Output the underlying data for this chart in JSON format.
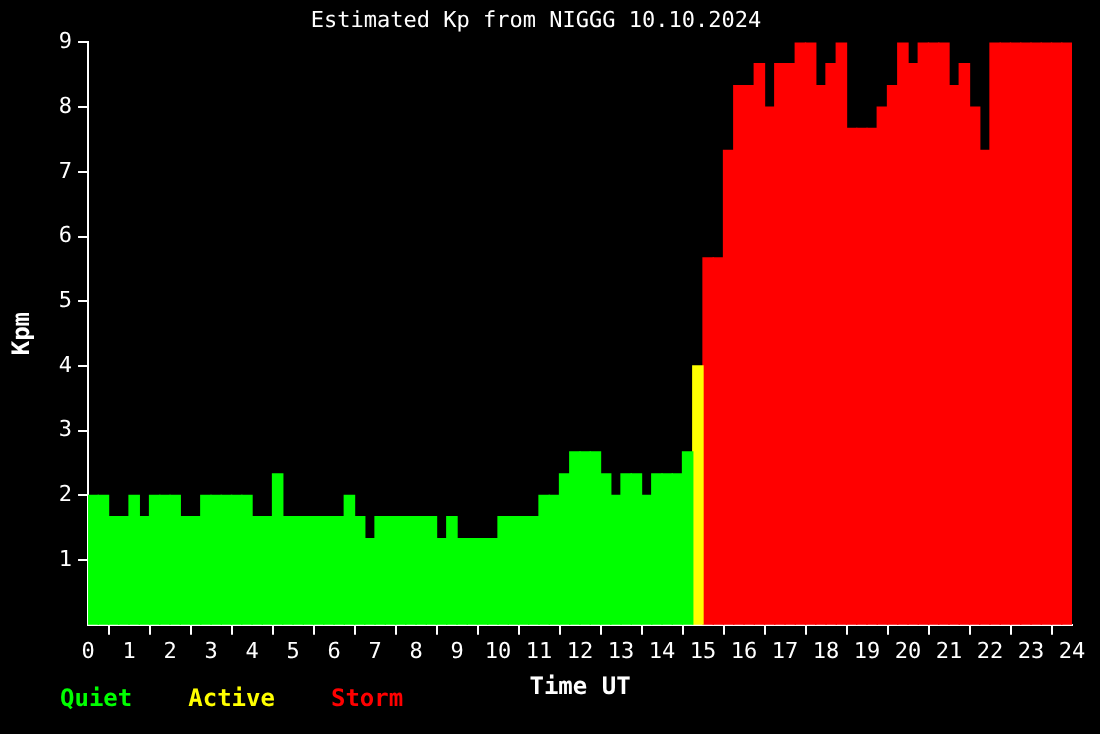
{
  "chart_data": {
    "type": "bar",
    "title": "Estimated Kp from NIGGG 10.10.2024",
    "xlabel": "Time UT",
    "ylabel": "Kpm",
    "stacked": true,
    "legend": "bottom left",
    "grid": false,
    "x": [
      0.125,
      0.375,
      0.625,
      0.875,
      1.125,
      1.375,
      1.625,
      1.875,
      2.125,
      2.375,
      2.625,
      2.875,
      3.125,
      3.375,
      3.625,
      3.875,
      4.125,
      4.375,
      4.625,
      4.875,
      5.125,
      5.375,
      5.625,
      5.875,
      6.125,
      6.375,
      6.625,
      6.875,
      7.125,
      7.375,
      7.625,
      7.875,
      8.125,
      8.375,
      8.625,
      8.875,
      9.125,
      9.375,
      9.625,
      9.875,
      10.125,
      10.375,
      10.625,
      10.875,
      11.125,
      11.375,
      11.625,
      11.875,
      12.125,
      12.375,
      12.625,
      12.875,
      13.125,
      13.375,
      13.625,
      13.875,
      14.125,
      14.375,
      14.625,
      14.875,
      15.125,
      15.375,
      15.625,
      15.875,
      16.125,
      16.375,
      16.625,
      16.875,
      17.125,
      17.375,
      17.625,
      17.875,
      18.125,
      18.375,
      18.625,
      18.875,
      19.125,
      19.375,
      19.625,
      19.875,
      20.125,
      20.375,
      20.625,
      20.875,
      21.125,
      21.375,
      21.625,
      21.875,
      22.125,
      22.375,
      22.625,
      22.875,
      23.125,
      23.375,
      23.625,
      23.875
    ],
    "xlim": [
      0,
      24
    ],
    "xticks": [
      0,
      1,
      2,
      3,
      4,
      5,
      6,
      7,
      8,
      9,
      10,
      11,
      12,
      13,
      14,
      15,
      16,
      17,
      18,
      19,
      20,
      21,
      22,
      23,
      24
    ],
    "ylim": [
      0,
      9
    ],
    "yticks": [
      1,
      2,
      3,
      4,
      5,
      6,
      7,
      8,
      9
    ],
    "series": [
      {
        "name": "Quiet",
        "color": "#00ff00",
        "values": [
          2,
          2,
          1.67,
          1.67,
          2,
          1.67,
          2,
          2,
          2,
          1.67,
          1.67,
          2,
          2,
          2,
          2,
          2,
          1.67,
          1.67,
          2.33,
          1.67,
          1.67,
          1.67,
          1.67,
          1.67,
          1.67,
          2,
          1.67,
          1.33,
          1.67,
          1.67,
          1.67,
          1.67,
          1.67,
          1.67,
          1.33,
          1.67,
          1.33,
          1.33,
          1.33,
          1.33,
          1.67,
          1.67,
          1.67,
          1.67,
          2,
          2,
          2.33,
          2.67,
          2.67,
          2.67,
          2.33,
          2,
          2.33,
          2.33,
          2,
          2.33,
          2.33,
          2.33,
          2.67,
          null,
          null,
          null,
          null,
          null,
          null,
          null,
          null,
          null,
          null,
          null,
          null,
          null,
          null,
          null,
          null,
          null,
          null,
          null,
          null,
          null,
          null,
          null,
          null,
          null,
          null,
          null,
          null,
          null,
          null,
          null,
          null,
          null,
          null,
          null,
          null,
          null
        ]
      },
      {
        "name": "Active",
        "color": "#ffff00",
        "values": [
          null,
          null,
          null,
          null,
          null,
          null,
          null,
          null,
          null,
          null,
          null,
          null,
          null,
          null,
          null,
          null,
          null,
          null,
          null,
          null,
          null,
          null,
          null,
          null,
          null,
          null,
          null,
          null,
          null,
          null,
          null,
          null,
          null,
          null,
          null,
          null,
          null,
          null,
          null,
          null,
          null,
          null,
          null,
          null,
          null,
          null,
          null,
          null,
          null,
          null,
          null,
          null,
          null,
          null,
          null,
          null,
          null,
          null,
          null,
          4,
          null,
          null,
          null,
          null,
          null,
          null,
          null,
          null,
          null,
          null,
          null,
          null,
          null,
          null,
          null,
          null,
          null,
          null,
          null,
          null,
          null,
          null,
          null,
          null,
          null,
          null,
          null,
          null,
          null,
          null,
          null,
          null,
          null,
          null,
          null,
          null
        ]
      },
      {
        "name": "Storm",
        "color": "#ff0000",
        "values": [
          null,
          null,
          null,
          null,
          null,
          null,
          null,
          null,
          null,
          null,
          null,
          null,
          null,
          null,
          null,
          null,
          null,
          null,
          null,
          null,
          null,
          null,
          null,
          null,
          null,
          null,
          null,
          null,
          null,
          null,
          null,
          null,
          null,
          null,
          null,
          null,
          null,
          null,
          null,
          null,
          null,
          null,
          null,
          null,
          null,
          null,
          null,
          null,
          null,
          null,
          null,
          null,
          null,
          null,
          null,
          null,
          null,
          null,
          null,
          null,
          5.67,
          5.67,
          7.33,
          8.33,
          8.33,
          8.67,
          8,
          8.67,
          8.67,
          9,
          9,
          8.33,
          8.67,
          9,
          7.67,
          7.67,
          7.67,
          8,
          8.33,
          9,
          8.67,
          9,
          9,
          9,
          8.33,
          8.67,
          8,
          7.33,
          9,
          9,
          9,
          9,
          9,
          9,
          9,
          9
        ]
      }
    ]
  }
}
